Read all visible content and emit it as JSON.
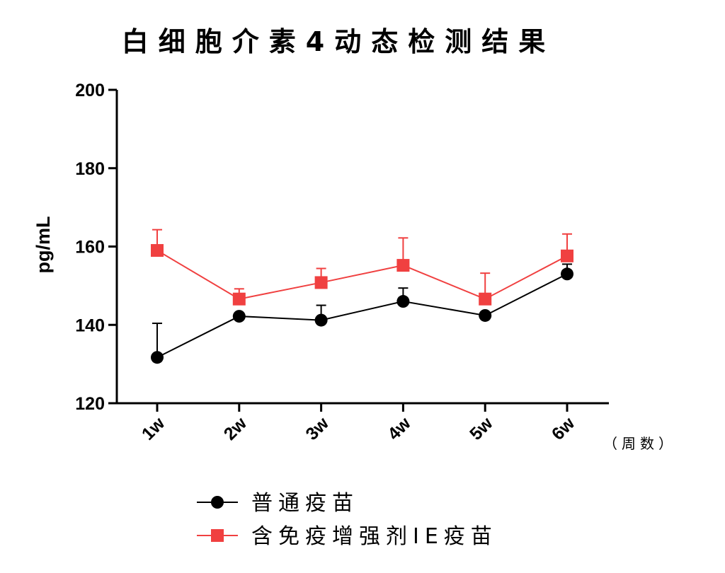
{
  "chart_data": {
    "type": "line",
    "title": "白细胞介素4动态检测结果",
    "xlabel": "（周数）",
    "ylabel": "pg/mL",
    "categories": [
      "1w",
      "2w",
      "3w",
      "4w",
      "5w",
      "6w"
    ],
    "ylim": [
      120,
      200
    ],
    "yticks": [
      "120",
      "140",
      "160",
      "180",
      "200"
    ],
    "legend_position": "bottom",
    "series": [
      {
        "name": "普通疫苗",
        "color": "#000000",
        "marker": "circle",
        "values": [
          131.7,
          142.2,
          141.2,
          146.0,
          142.4,
          153.0
        ],
        "error_upper": [
          8.7,
          0.0,
          3.8,
          3.4,
          0.0,
          2.5
        ]
      },
      {
        "name": "含免疫增强剂IE疫苗",
        "color": "#f04040",
        "marker": "square",
        "values": [
          159.0,
          146.6,
          150.8,
          155.2,
          146.6,
          157.6
        ],
        "error_upper": [
          5.3,
          2.6,
          3.6,
          7.0,
          6.6,
          5.6
        ]
      }
    ]
  }
}
